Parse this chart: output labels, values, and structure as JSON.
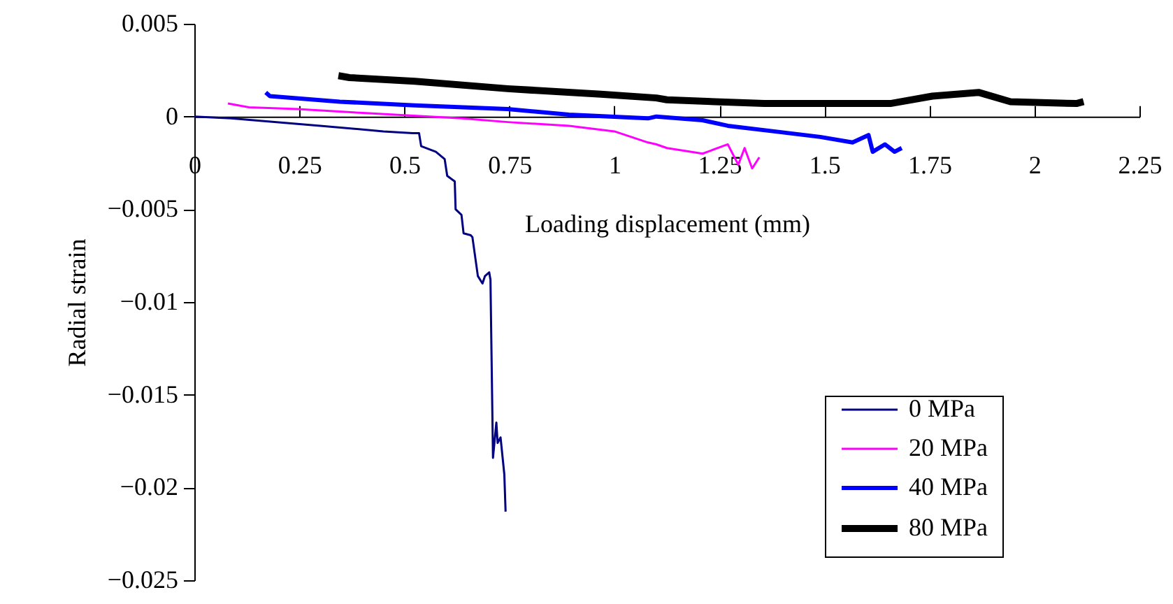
{
  "chart_data": {
    "type": "line",
    "xlabel": "Loading displacement (mm)",
    "ylabel": "Radial strain",
    "xlim": [
      0,
      2.25
    ],
    "xticks": [
      0,
      0.25,
      0.5,
      0.75,
      1,
      1.25,
      1.5,
      1.75,
      2,
      2.25
    ],
    "ylim": [
      -0.025,
      0.005
    ],
    "yticks": [
      -0.025,
      -0.02,
      -0.015,
      -0.01,
      -0.005,
      0,
      0.005
    ],
    "grid": false,
    "legend": "bottom right",
    "marker": "none",
    "line_style": "solid",
    "series": [
      {
        "name": "0 MPa",
        "color": "#000080",
        "x": [
          0,
          0.087,
          0.3,
          0.45,
          0.52,
          0.535,
          0.54,
          0.575,
          0.596,
          0.602,
          0.62,
          0.622,
          0.636,
          0.641,
          0.658,
          0.662,
          0.675,
          0.686,
          0.692,
          0.702,
          0.705,
          0.711,
          0.719,
          0.722,
          0.729,
          0.738,
          0.741
        ],
        "values": [
          0,
          -0.0001,
          -0.0005,
          -0.0008,
          -0.0009,
          -0.0009,
          -0.0016,
          -0.0019,
          -0.0023,
          -0.0032,
          -0.0035,
          -0.005,
          -0.0053,
          -0.0063,
          -0.0064,
          -0.0065,
          -0.0086,
          -0.009,
          -0.0086,
          -0.0084,
          -0.0088,
          -0.0184,
          -0.0165,
          -0.0176,
          -0.0173,
          -0.0193,
          -0.0213
        ]
      },
      {
        "name": "20 MPa",
        "color": "#ff00ff",
        "x": [
          0.08,
          0.13,
          0.246,
          0.393,
          0.636,
          0.746,
          0.892,
          1.0,
          1.08,
          1.1,
          1.125,
          1.21,
          1.27,
          1.295,
          1.31,
          1.328,
          1.345
        ],
        "values": [
          0.0007,
          0.0005,
          0.0004,
          0.0002,
          -0.0001,
          -0.0003,
          -0.0005,
          -0.0008,
          -0.0014,
          -0.0015,
          -0.0017,
          -0.002,
          -0.0015,
          -0.0026,
          -0.0017,
          -0.0028,
          -0.0022
        ]
      },
      {
        "name": "40 MPa",
        "color": "#0000ff",
        "x": [
          0.17,
          0.18,
          0.346,
          0.525,
          0.746,
          0.892,
          1.08,
          1.1,
          1.21,
          1.27,
          1.38,
          1.49,
          1.567,
          1.605,
          1.615,
          1.644,
          1.667,
          1.684
        ],
        "values": [
          0.0013,
          0.0011,
          0.0008,
          0.0006,
          0.0004,
          0.0001,
          -0.0001,
          0,
          -0.0002,
          -0.0005,
          -0.0008,
          -0.0011,
          -0.0014,
          -0.001,
          -0.0019,
          -0.0015,
          -0.0019,
          -0.0017
        ]
      },
      {
        "name": "80 MPa",
        "color": "#000000",
        "x": [
          0.343,
          0.369,
          0.525,
          0.746,
          0.968,
          1.1,
          1.125,
          1.357,
          1.657,
          1.757,
          1.867,
          1.943,
          2.1,
          2.117
        ],
        "values": [
          0.0022,
          0.0021,
          0.0019,
          0.0015,
          0.0012,
          0.001,
          0.0009,
          0.0007,
          0.0007,
          0.0011,
          0.0013,
          0.0008,
          0.0007,
          0.0008
        ]
      }
    ]
  }
}
